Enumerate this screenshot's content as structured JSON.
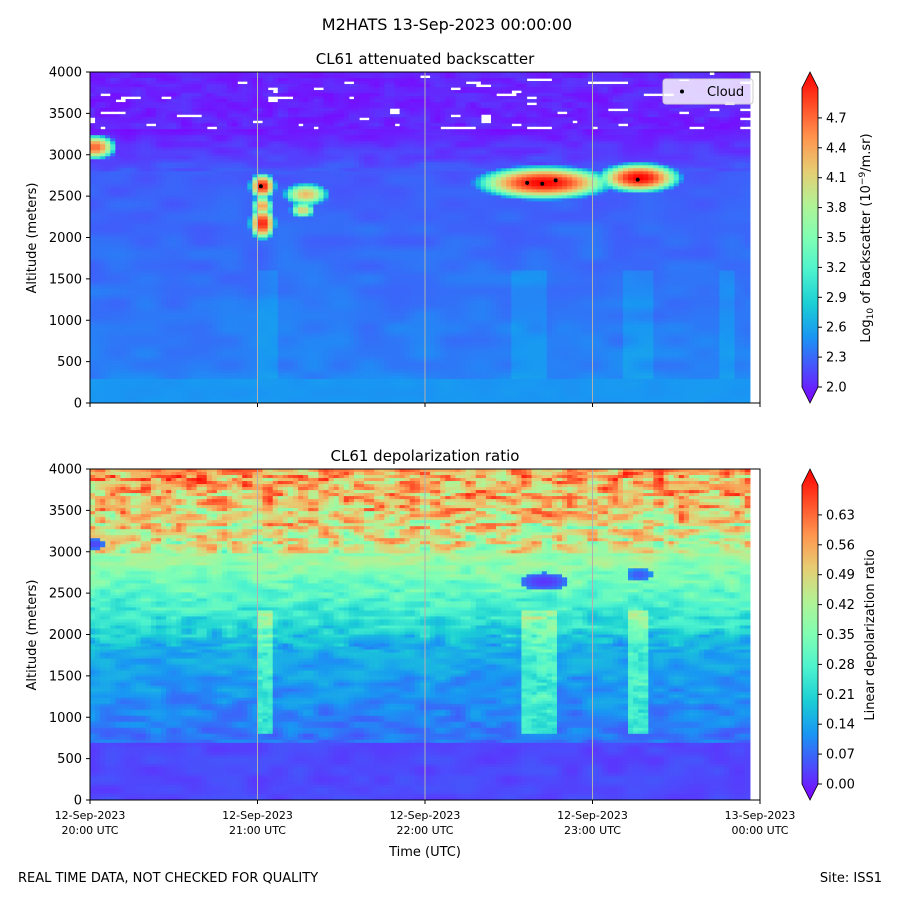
{
  "figure": {
    "suptitle": "M2HATS 13-Sep-2023 00:00:00",
    "footer_left": "REAL TIME DATA, NOT CHECKED FOR QUALITY",
    "footer_right": "Site: ISS1"
  },
  "chart_data": [
    {
      "type": "heatmap",
      "title": "CL61 attenuated backscatter",
      "xlabel": "",
      "ylabel": "Altitude (meters)",
      "xlim": [
        0,
        4
      ],
      "ylim": [
        0,
        4000
      ],
      "x_ticks": [
        0,
        1,
        2,
        3,
        4
      ],
      "x_tick_labels": [],
      "y_ticks": [
        0,
        500,
        1000,
        1500,
        2000,
        2500,
        3000,
        3500,
        4000
      ],
      "y_tick_labels": [
        "0",
        "500",
        "1000",
        "1500",
        "2000",
        "2500",
        "3000",
        "3500",
        "4000"
      ],
      "grid": "vertical",
      "colorbar": {
        "label": "Log10 of backscatter (10^-9/m.sr)",
        "label_base": "Log",
        "label_sub": "10",
        "label_mid": " of backscatter (10",
        "label_sup": "−9",
        "label_end": "/m.sr)",
        "range": [
          2.0,
          5.0
        ],
        "ticks": [
          2.0,
          2.3,
          2.6,
          2.9,
          3.2,
          3.5,
          3.8,
          4.1,
          4.4,
          4.7
        ],
        "tick_labels": [
          "2.0",
          "2.3",
          "2.6",
          "2.9",
          "3.2",
          "3.5",
          "3.8",
          "4.1",
          "4.4",
          "4.7"
        ]
      },
      "legend": {
        "label": "Cloud",
        "location": "top-right"
      },
      "cloud_points": [
        {
          "x": 1.02,
          "y": 2620
        },
        {
          "x": 2.61,
          "y": 2660
        },
        {
          "x": 2.7,
          "y": 2650
        },
        {
          "x": 2.78,
          "y": 2690
        },
        {
          "x": 3.27,
          "y": 2700
        }
      ],
      "features": [
        {
          "kind": "cloud",
          "x": 2.71,
          "y": 2660,
          "dx": 0.18,
          "dy": 90,
          "value": 5.0
        },
        {
          "kind": "cloud",
          "x": 3.28,
          "y": 2720,
          "dx": 0.11,
          "dy": 80,
          "value": 5.0
        },
        {
          "kind": "cloud",
          "x": 1.03,
          "y": 2620,
          "dx": 0.035,
          "dy": 70,
          "value": 4.9
        },
        {
          "kind": "cloud",
          "x": 1.03,
          "y": 2170,
          "dx": 0.035,
          "dy": 90,
          "value": 4.9
        },
        {
          "kind": "cloud",
          "x": 1.03,
          "y": 2380,
          "dx": 0.03,
          "dy": 60,
          "value": 4.4
        },
        {
          "kind": "cloud",
          "x": 1.29,
          "y": 2520,
          "dx": 0.07,
          "dy": 70,
          "value": 4.2
        },
        {
          "kind": "cloud",
          "x": 1.27,
          "y": 2330,
          "dx": 0.04,
          "dy": 50,
          "value": 4.1
        },
        {
          "kind": "cloud",
          "x": 0.03,
          "y": 3090,
          "dx": 0.06,
          "dy": 70,
          "value": 4.6
        }
      ]
    },
    {
      "type": "heatmap",
      "title": "CL61 depolarization ratio",
      "xlabel": "Time (UTC)",
      "ylabel": "Altitude (meters)",
      "xlim": [
        0,
        4
      ],
      "ylim": [
        0,
        4000
      ],
      "x_ticks": [
        0,
        1,
        2,
        3,
        4
      ],
      "x_tick_labels": [
        [
          "12-Sep-2023",
          "20:00 UTC"
        ],
        [
          "12-Sep-2023",
          "21:00 UTC"
        ],
        [
          "12-Sep-2023",
          "22:00 UTC"
        ],
        [
          "12-Sep-2023",
          "23:00 UTC"
        ],
        [
          "13-Sep-2023",
          "00:00 UTC"
        ]
      ],
      "y_ticks": [
        0,
        500,
        1000,
        1500,
        2000,
        2500,
        3000,
        3500,
        4000
      ],
      "y_tick_labels": [
        "0",
        "500",
        "1000",
        "1500",
        "2000",
        "2500",
        "3000",
        "3500",
        "4000"
      ],
      "grid": "vertical",
      "colorbar": {
        "label": "Linear depolarization ratio",
        "range": [
          0.0,
          0.7
        ],
        "ticks": [
          0.0,
          0.07,
          0.14,
          0.21,
          0.28,
          0.35,
          0.42,
          0.49,
          0.56,
          0.63
        ],
        "tick_labels": [
          "0.00",
          "0.07",
          "0.14",
          "0.21",
          "0.28",
          "0.35",
          "0.42",
          "0.49",
          "0.56",
          "0.63"
        ]
      }
    }
  ],
  "colors": {
    "jet_stops": [
      "#7f00ff",
      "#4c4cfc",
      "#1996f3",
      "#1bcfd4",
      "#4df3ce",
      "#80feb3",
      "#b2f295",
      "#e6cd73",
      "#ff964f",
      "#ff4c27",
      "#ff0000"
    ],
    "cloud_marker": "#000000",
    "grid": "#b0b0b0"
  }
}
